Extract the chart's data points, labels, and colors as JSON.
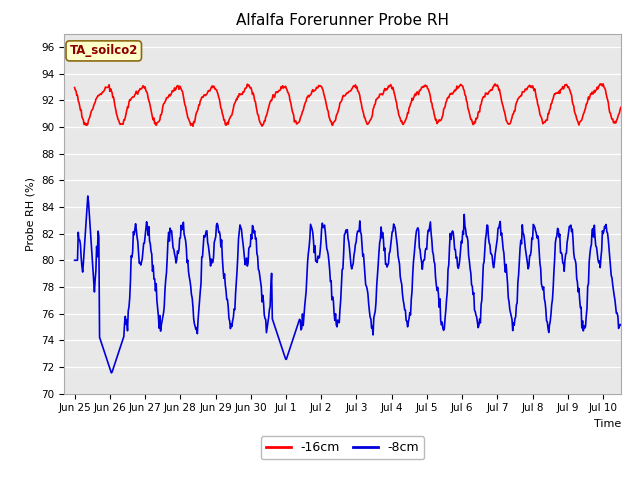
{
  "title": "Alfalfa Forerunner Probe RH",
  "ylabel": "Probe RH (%)",
  "xlabel": "Time",
  "ylim": [
    70,
    97
  ],
  "yticks": [
    70,
    72,
    74,
    76,
    78,
    80,
    82,
    84,
    86,
    88,
    90,
    92,
    94,
    96
  ],
  "fig_bg_color": "#ffffff",
  "plot_bg_color": "#e8e8e8",
  "legend_label_box": "TA_soilco2",
  "legend_label_red": "-16cm",
  "legend_label_blue": "-8cm",
  "red_color": "#ff0000",
  "blue_color": "#0000dd",
  "red_linewidth": 1.2,
  "blue_linewidth": 1.2,
  "title_fontsize": 11,
  "axis_fontsize": 8,
  "tick_fontsize": 7.5,
  "xtick_labels": [
    "Jun 25",
    "Jun 26",
    "Jun 27",
    "Jun 28",
    "Jun 29",
    "Jun 30",
    "Jul 1",
    "Jul 2",
    "Jul 3",
    "Jul 4",
    "Jul 5",
    "Jul 6",
    "Jul 7",
    "Jul 8",
    "Jul 9",
    "Jul 10"
  ]
}
